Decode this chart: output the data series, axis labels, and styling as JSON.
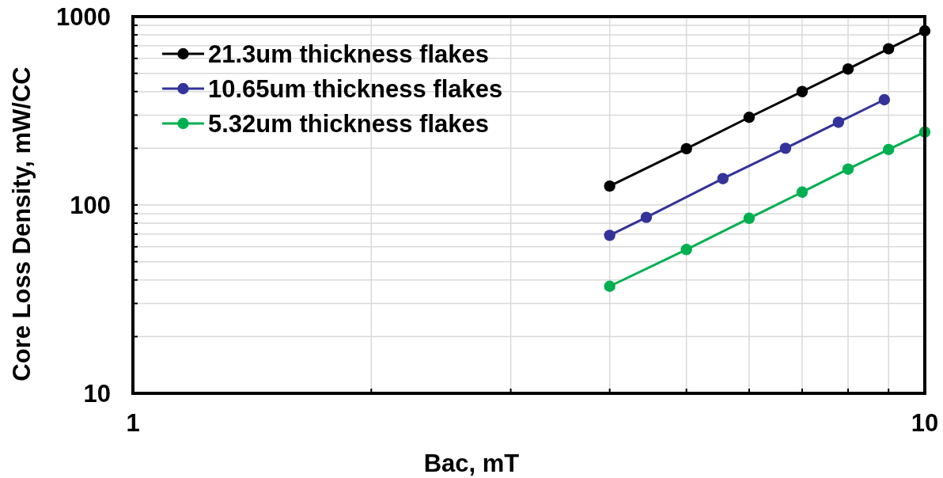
{
  "chart_data": {
    "type": "line",
    "xlabel": "Bac, mT",
    "ylabel": "Core Loss Density, mW/CC",
    "log": "xy",
    "xlim": [
      1,
      10
    ],
    "xticks": [
      1,
      10
    ],
    "ylim": [
      10,
      1000
    ],
    "yticks": [
      10,
      100,
      1000
    ],
    "grid": true,
    "legend": "top left",
    "marker": "circle",
    "line_style": "solid",
    "series": [
      {
        "name": "21.3um thickness flakes",
        "color": "#000000",
        "x": [
          4,
          5,
          6,
          7,
          8,
          9,
          10
        ],
        "values": [
          126,
          199,
          292,
          400,
          527,
          675,
          840
        ]
      },
      {
        "name": "10.65um thickness flakes",
        "color": "#333399",
        "x": [
          4,
          4.45,
          5.56,
          6.67,
          7.78,
          8.89
        ],
        "values": [
          69,
          86,
          138,
          200,
          275,
          362
        ]
      },
      {
        "name": "5.32um thickness flakes",
        "color": "#00b050",
        "x": [
          4,
          5,
          6,
          7,
          8,
          9,
          10
        ],
        "values": [
          37,
          58,
          85,
          117,
          155,
          197,
          244
        ]
      }
    ]
  }
}
